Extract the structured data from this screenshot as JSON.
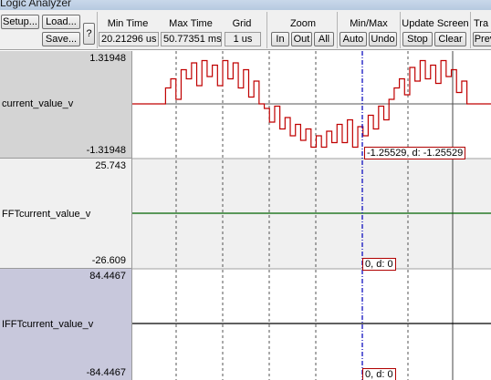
{
  "window": {
    "title": "Logic Analyzer"
  },
  "toolbar": {
    "setup_label": "Setup...",
    "load_label": "Load...",
    "save_label": "Save...",
    "help_label": "?",
    "min_time": {
      "label": "Min Time",
      "value": "20.21296 us"
    },
    "max_time": {
      "label": "Max Time",
      "value": "50.77351 ms"
    },
    "grid": {
      "label": "Grid",
      "value": "1 us"
    },
    "zoom": {
      "label": "Zoom",
      "in_label": "In",
      "out_label": "Out",
      "all_label": "All"
    },
    "minmax": {
      "label": "Min/Max",
      "auto_label": "Auto",
      "undo_label": "Undo"
    },
    "update": {
      "label": "Update Screen",
      "stop_label": "Stop",
      "clear_label": "Clear"
    },
    "transition": {
      "label": "Tra",
      "prev_label": "Prev"
    }
  },
  "signals": [
    {
      "name": "current_value_v",
      "max": "1.31948",
      "min": "-1.31948",
      "cursor_label": "-1.25529,  d: -1.25529",
      "color": "#c00000",
      "panel_bg": "#d4d4d4"
    },
    {
      "name": "FFTcurrent_value_v",
      "max": "25.743",
      "min": "-26.609",
      "cursor_label": "0,  d: 0",
      "color": "#006400",
      "panel_bg": "#f0f0f0"
    },
    {
      "name": "IFFTcurrent_value_v",
      "max": "84.4467",
      "min": "-84.4467",
      "cursor_label": "0,  d: 0",
      "color": "#000000",
      "panel_bg": "#c8c8dc"
    }
  ],
  "colors": {
    "cursor": "#1010c0",
    "grid": "#555555",
    "waveform_zero": "#000000"
  },
  "waveform": {
    "step_levels": [
      0,
      0,
      0.35,
      0.55,
      0.1,
      0.75,
      0.55,
      0.9,
      0.4,
      0.95,
      0.6,
      0.85,
      0.4,
      0.95,
      0.55,
      0.9,
      0.35,
      0.75,
      0.15,
      0.5,
      0,
      -0.1,
      -0.4,
      -0.05,
      -0.55,
      -0.3,
      -0.7,
      -0.45,
      -0.8,
      -0.55,
      -0.95,
      -0.7,
      -0.95,
      -0.6,
      -0.85,
      -0.45,
      -0.85,
      -0.35,
      -0.95,
      -0.5,
      -0.7,
      -0.25,
      -0.55,
      -0.05,
      -0.35,
      0.1,
      0.35,
      0.55,
      0.2,
      0.8,
      0.5,
      0.95,
      0.55,
      0.85,
      0.45,
      0.95,
      0.6,
      0.75,
      0.25,
      0.5,
      0,
      0
    ]
  }
}
